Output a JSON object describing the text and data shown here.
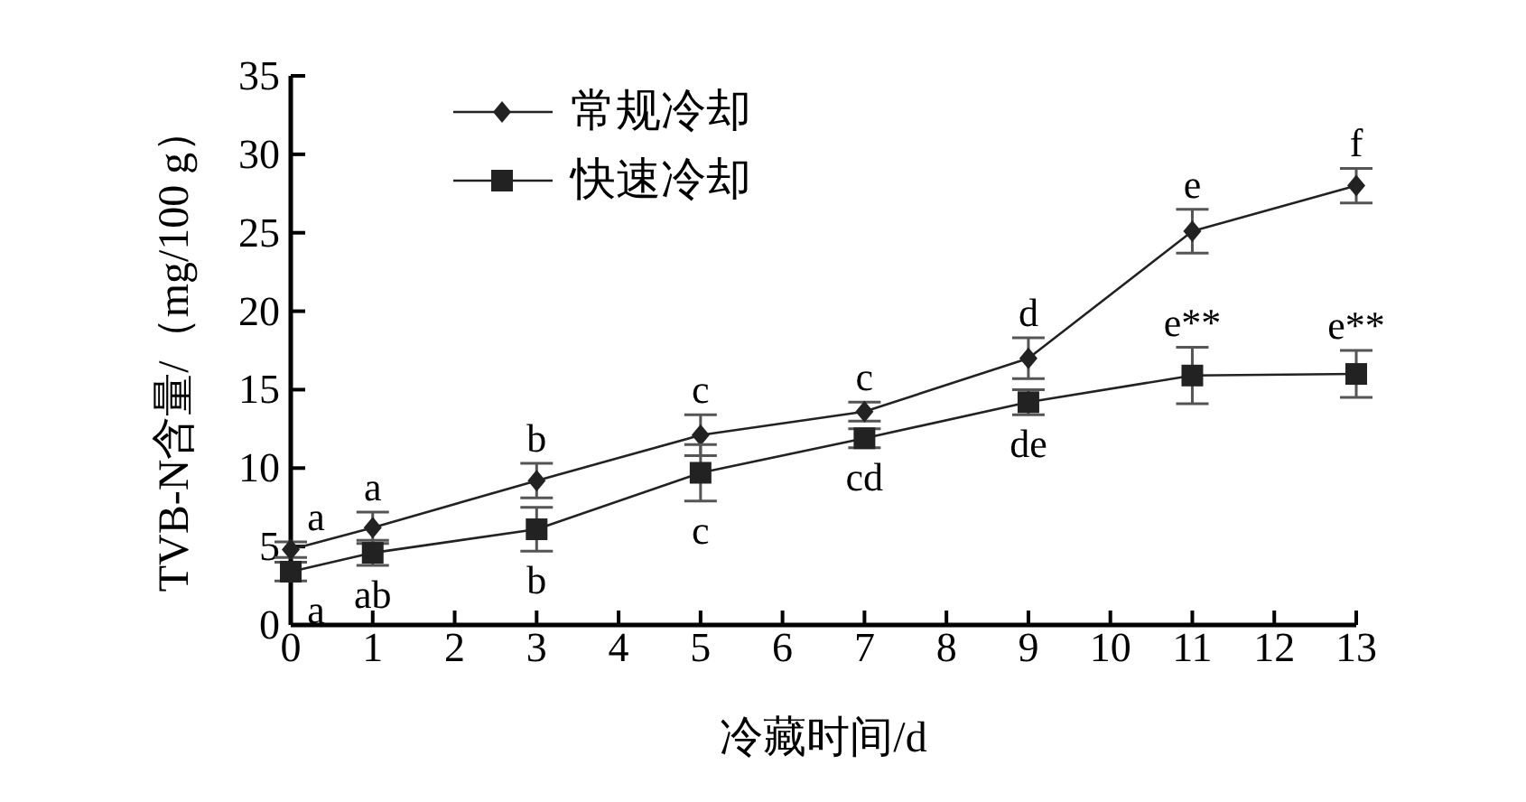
{
  "chart_data": {
    "type": "line",
    "xlabel": "冷藏时间/d",
    "ylabel": "TVB-N含量/（mg/100 g）",
    "x": [
      0,
      1,
      3,
      5,
      7,
      9,
      11,
      13
    ],
    "series": [
      {
        "name": "常规冷却",
        "color": "#222222",
        "marker": "diamond",
        "values": [
          4.8,
          6.2,
          9.2,
          12.1,
          13.6,
          17.0,
          25.1,
          28.0
        ],
        "errors": [
          0.5,
          1.0,
          1.1,
          1.3,
          0.6,
          1.3,
          1.4,
          1.1
        ]
      },
      {
        "name": "快速冷却",
        "color": "#222222",
        "marker": "square",
        "values": [
          3.4,
          4.6,
          6.1,
          9.7,
          11.9,
          14.2,
          15.9,
          16.0
        ],
        "errors": [
          0.6,
          0.8,
          1.4,
          1.8,
          0.6,
          0.8,
          1.8,
          1.5
        ]
      }
    ],
    "xlim": [
      0,
      13
    ],
    "ylim": [
      0,
      35
    ],
    "xticks": [
      0,
      1,
      2,
      3,
      4,
      5,
      6,
      7,
      8,
      9,
      10,
      11,
      12,
      13
    ],
    "yticks": [
      0,
      5,
      10,
      15,
      20,
      25,
      30,
      35
    ],
    "grid": false,
    "legend": "top left",
    "annotations": [
      {
        "text": "a",
        "x": 0,
        "y": 4.8
      },
      {
        "text": "a",
        "x": 0,
        "y": 3.4
      },
      {
        "text": "a",
        "x": 1,
        "y": 6.2
      },
      {
        "text": "ab",
        "x": 1,
        "y": 4.6
      },
      {
        "text": "b",
        "x": 3,
        "y": 9.2
      },
      {
        "text": "b",
        "x": 3,
        "y": 6.1
      },
      {
        "text": "c",
        "x": 5,
        "y": 12.1
      },
      {
        "text": "c",
        "x": 5,
        "y": 9.7
      },
      {
        "text": "c",
        "x": 7,
        "y": 13.6
      },
      {
        "text": "cd",
        "x": 7,
        "y": 11.9
      },
      {
        "text": "d",
        "x": 9,
        "y": 17.0
      },
      {
        "text": "de",
        "x": 9,
        "y": 14.2
      },
      {
        "text": "e",
        "x": 11,
        "y": 25.1
      },
      {
        "text": "e**",
        "x": 11,
        "y": 15.9
      },
      {
        "text": "f",
        "x": 13,
        "y": 28.0
      },
      {
        "text": "e**",
        "x": 13,
        "y": 16.0
      }
    ]
  }
}
